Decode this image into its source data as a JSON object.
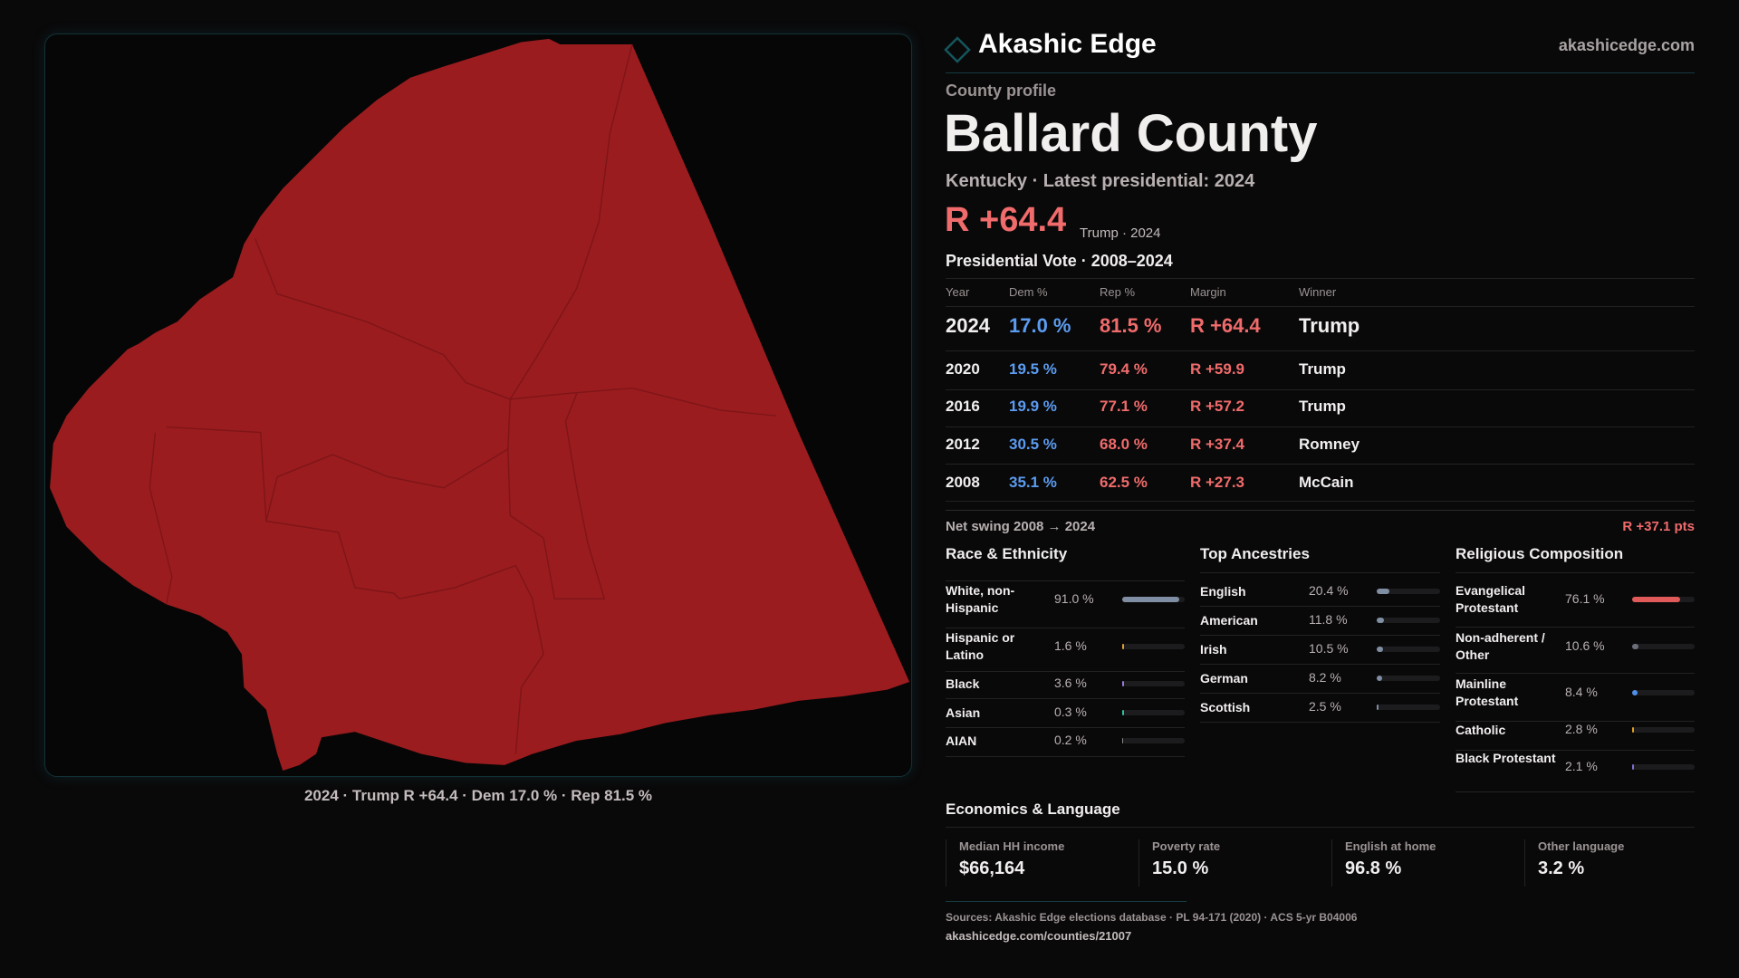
{
  "header": {
    "brand": "Akashic Edge",
    "site": "akashicedge.com"
  },
  "profile": {
    "eyebrow": "County profile",
    "title": "Ballard County",
    "subtitle": "Kentucky · Latest presidential: 2024",
    "margin": "R +64.4",
    "margin_note": "Trump · 2024"
  },
  "map": {
    "caption": "2024 · Trump R +64.4 · Dem 17.0 % · Rep 81.5 %",
    "fill": "#9b1c1f"
  },
  "vote": {
    "title": "Presidential Vote · 2008–2024",
    "headers": [
      "Year",
      "Dem %",
      "Rep %",
      "Margin",
      "Winner"
    ],
    "rows": [
      {
        "year": "2024",
        "dem": "17.0 %",
        "rep": "81.5 %",
        "margin": "R +64.4",
        "winner": "Trump"
      },
      {
        "year": "2020",
        "dem": "19.5 %",
        "rep": "79.4 %",
        "margin": "R +59.9",
        "winner": "Trump"
      },
      {
        "year": "2016",
        "dem": "19.9 %",
        "rep": "77.1 %",
        "margin": "R +57.2",
        "winner": "Trump"
      },
      {
        "year": "2012",
        "dem": "30.5 %",
        "rep": "68.0 %",
        "margin": "R +37.4",
        "winner": "Romney"
      },
      {
        "year": "2008",
        "dem": "35.1 %",
        "rep": "62.5 %",
        "margin": "R +27.3",
        "winner": "McCain"
      }
    ],
    "swing_label": "Net swing 2008 → 2024",
    "swing_value": "R +37.1 pts"
  },
  "race": {
    "title": "Race & Ethnicity",
    "items": [
      {
        "label": "White, non-Hispanic",
        "value": "91.0 %",
        "pct": 91.0,
        "color": "#7f8ea3"
      },
      {
        "label": "Hispanic or Latino",
        "value": "1.6 %",
        "pct": 1.6,
        "color": "#e0a030"
      },
      {
        "label": "Black",
        "value": "3.6 %",
        "pct": 3.6,
        "color": "#9a78e0"
      },
      {
        "label": "Asian",
        "value": "0.3 %",
        "pct": 0.3,
        "color": "#30c0a0"
      },
      {
        "label": "AIAN",
        "value": "0.2 %",
        "pct": 0.2,
        "color": "#888"
      }
    ]
  },
  "ancestry": {
    "title": "Top Ancestries",
    "items": [
      {
        "label": "English",
        "value": "20.4 %",
        "pct": 20.4,
        "color": "#7f8ea3"
      },
      {
        "label": "American",
        "value": "11.8 %",
        "pct": 11.8,
        "color": "#7f8ea3"
      },
      {
        "label": "Irish",
        "value": "10.5 %",
        "pct": 10.5,
        "color": "#7f8ea3"
      },
      {
        "label": "German",
        "value": "8.2 %",
        "pct": 8.2,
        "color": "#7f8ea3"
      },
      {
        "label": "Scottish",
        "value": "2.5 %",
        "pct": 2.5,
        "color": "#7f8ea3"
      }
    ]
  },
  "religion": {
    "title": "Religious Composition",
    "items": [
      {
        "label": "Evangelical Protestant",
        "value": "76.1 %",
        "pct": 76.1,
        "color": "#e05a5a"
      },
      {
        "label": "Non-adherent / Other",
        "value": "10.6 %",
        "pct": 10.6,
        "color": "#6a6e78"
      },
      {
        "label": "Mainline Protestant",
        "value": "8.4 %",
        "pct": 8.4,
        "color": "#4f8fe8"
      },
      {
        "label": "Catholic",
        "value": "2.8 %",
        "pct": 2.8,
        "color": "#e0a020"
      },
      {
        "label": "Black Protestant",
        "value": "2.1 %",
        "pct": 2.1,
        "color": "#8070d0"
      }
    ]
  },
  "econ": {
    "title": "Economics & Language",
    "stats": [
      {
        "label": "Median HH income",
        "value": "$66,164"
      },
      {
        "label": "Poverty rate",
        "value": "15.0 %"
      },
      {
        "label": "English at home",
        "value": "96.8 %"
      },
      {
        "label": "Other language",
        "value": "3.2 %"
      }
    ]
  },
  "footer": {
    "sources": "Sources: Akashic Edge elections database · PL 94-171 (2020) · ACS 5-yr B04006",
    "url": "akashicedge.com/counties/21007"
  }
}
